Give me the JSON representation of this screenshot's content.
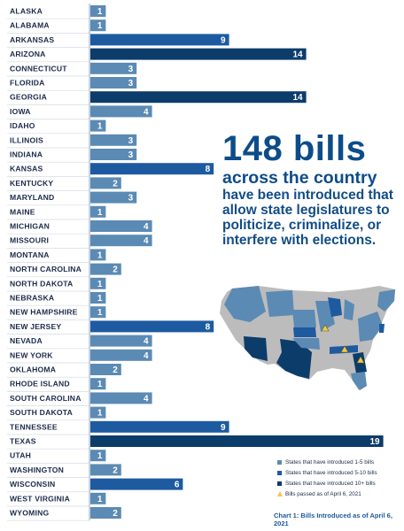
{
  "colors": {
    "tier1": "#5b8ab4",
    "tier2": "#1e5aa0",
    "tier3": "#0c3c6a",
    "map_gray": "#bcbcbc",
    "triangle": "#f2c94c",
    "headline": "#0d4c8a"
  },
  "headline": {
    "big": "148 bills",
    "sub": "across the country",
    "rest": "have been introduced that allow state legislatures to politicize, criminalize, or interfere with elections."
  },
  "legend": {
    "items": [
      {
        "label": "States that have introduced 1-5 bills",
        "color": "#5b8ab4"
      },
      {
        "label": "States that have introduced 5-10 bills",
        "color": "#1e5aa0"
      },
      {
        "label": "States that have introduced 10+ bills",
        "color": "#0c3c6a"
      },
      {
        "label": "Bills passed as of April 6, 2021",
        "marker": "triangle"
      }
    ]
  },
  "caption": "Chart 1: Bills Introduced as of April 6, 2021",
  "chart_data": {
    "type": "bar",
    "orientation": "horizontal",
    "categories": [
      "ALASKA",
      "ALABAMA",
      "ARKANSAS",
      "ARIZONA",
      "CONNECTICUT",
      "FLORIDA",
      "GEORGIA",
      "IOWA",
      "IDAHO",
      "ILLINOIS",
      "INDIANA",
      "KANSAS",
      "KENTUCKY",
      "MARYLAND",
      "MAINE",
      "MICHIGAN",
      "MISSOURI",
      "MONTANA",
      "NORTH CAROLINA",
      "NORTH DAKOTA",
      "NEBRASKA",
      "NEW HAMPSHIRE",
      "NEW JERSEY",
      "NEVADA",
      "NEW YORK",
      "OKLAHOMA",
      "RHODE ISLAND",
      "SOUTH CAROLINA",
      "SOUTH DAKOTA",
      "TENNESSEE",
      "TEXAS",
      "UTAH",
      "WASHINGTON",
      "WISCONSIN",
      "WEST VIRGINIA",
      "WYOMING"
    ],
    "values": [
      1,
      1,
      9,
      14,
      3,
      3,
      14,
      4,
      1,
      3,
      3,
      8,
      2,
      3,
      1,
      4,
      4,
      1,
      2,
      1,
      1,
      1,
      8,
      4,
      4,
      2,
      1,
      4,
      1,
      9,
      19,
      1,
      2,
      6,
      1,
      2
    ],
    "value_labels": [
      "1",
      "1",
      "9",
      "14",
      "3",
      "3",
      "14",
      "4",
      "1",
      "3",
      "3",
      "8",
      "2",
      "3",
      "1",
      "4",
      "4",
      "1",
      "2",
      "1",
      "1",
      "1",
      "8",
      "4",
      "4",
      "2",
      "1",
      "4",
      "1",
      "9",
      "19",
      "1",
      "2",
      "6",
      "1",
      "2"
    ],
    "legend_position": "bottom-right",
    "grid": false
  }
}
